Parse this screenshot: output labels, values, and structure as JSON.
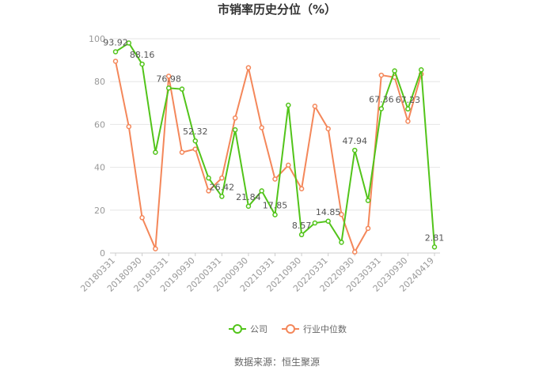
{
  "chart_data": {
    "type": "line",
    "title": "市销率历史分位（%）",
    "source": "数据来源：恒生聚源",
    "ylim": [
      0,
      100
    ],
    "yticks": [
      0,
      20,
      40,
      60,
      80,
      100
    ],
    "grid": true,
    "legend_position": "bottom-center",
    "xtick_labels": [
      "20180331",
      "20180930",
      "20190331",
      "20190930",
      "20200331",
      "20200930",
      "20210331",
      "20210930",
      "20220331",
      "20220930",
      "20230331",
      "20230930",
      "20240419"
    ],
    "x": [
      "20180331",
      "20180630",
      "20180930",
      "20181231",
      "20190331",
      "20190630",
      "20190930",
      "20191231",
      "20200331",
      "20200630",
      "20200930",
      "20201231",
      "20210331",
      "20210630",
      "20210930",
      "20211231",
      "20220331",
      "20220630",
      "20220930",
      "20221231",
      "20230331",
      "20230630",
      "20230930",
      "20231231",
      "20240419"
    ],
    "series": [
      {
        "name": "公司",
        "color": "#52c41a",
        "values": [
          93.92,
          98,
          88.16,
          47,
          76.98,
          76.5,
          52.32,
          35,
          26.42,
          57.5,
          21.84,
          29,
          17.85,
          69,
          8.57,
          14,
          14.85,
          5,
          47.94,
          24.5,
          67.36,
          85,
          67.23,
          85.5,
          2.81
        ],
        "labels": {
          "0": "93.92",
          "2": "88.16",
          "4": "76.98",
          "6": "52.32",
          "8": "26.42",
          "10": "21.84",
          "12": "17.85",
          "14": "8.57",
          "16": "14.85",
          "18": "47.94",
          "20": "67.36",
          "22": "67.23",
          "24": "2.81"
        }
      },
      {
        "name": "行业中位数",
        "color": "#f4875a",
        "values": [
          89.5,
          59,
          16.5,
          2,
          82.5,
          47,
          48.5,
          29,
          35,
          63,
          86.5,
          58.5,
          34.5,
          41,
          30,
          68.5,
          58,
          18,
          0.5,
          11.5,
          83,
          82,
          61.5,
          83.5,
          null
        ]
      }
    ]
  }
}
